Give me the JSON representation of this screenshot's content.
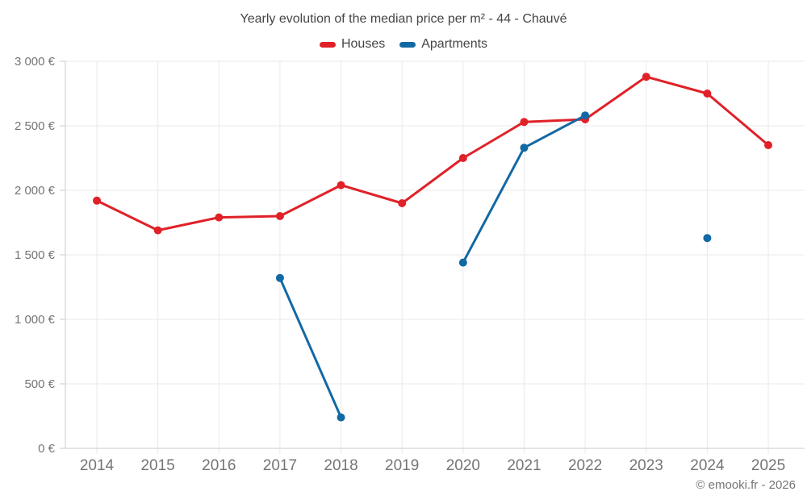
{
  "footer": {
    "attribution": "© emooki.fr - 2026"
  },
  "chart_data": {
    "type": "line",
    "title": "Yearly evolution of the median price per m² - 44 - Chauvé",
    "categories": [
      "2014",
      "2015",
      "2016",
      "2017",
      "2018",
      "2019",
      "2020",
      "2021",
      "2022",
      "2023",
      "2024",
      "2025"
    ],
    "series": [
      {
        "name": "Houses",
        "color": "#e02128",
        "values": [
          1920,
          1690,
          1790,
          1800,
          2040,
          1900,
          2250,
          2530,
          2550,
          2880,
          2750,
          2350
        ]
      },
      {
        "name": "Apartments",
        "color": "#1269a4",
        "values": [
          null,
          null,
          null,
          1320,
          240,
          null,
          1440,
          2330,
          2580,
          null,
          1630,
          null
        ]
      }
    ],
    "xlabel": "",
    "ylabel": "",
    "ylim": [
      0,
      3000
    ],
    "y_ticks": [
      {
        "value": 0,
        "label": "0 €"
      },
      {
        "value": 500,
        "label": "500 €"
      },
      {
        "value": 1000,
        "label": "1 000 €"
      },
      {
        "value": 1500,
        "label": "1 500 €"
      },
      {
        "value": 2000,
        "label": "2 000 €"
      },
      {
        "value": 2500,
        "label": "2 500 €"
      },
      {
        "value": 3000,
        "label": "3 000 €"
      }
    ],
    "grid": true,
    "legend_position": "top",
    "marker": "circle",
    "gaps_note": "Apartments series has no data for 2014-2016, 2019, 2023, 2025; 2024 is an isolated point"
  }
}
